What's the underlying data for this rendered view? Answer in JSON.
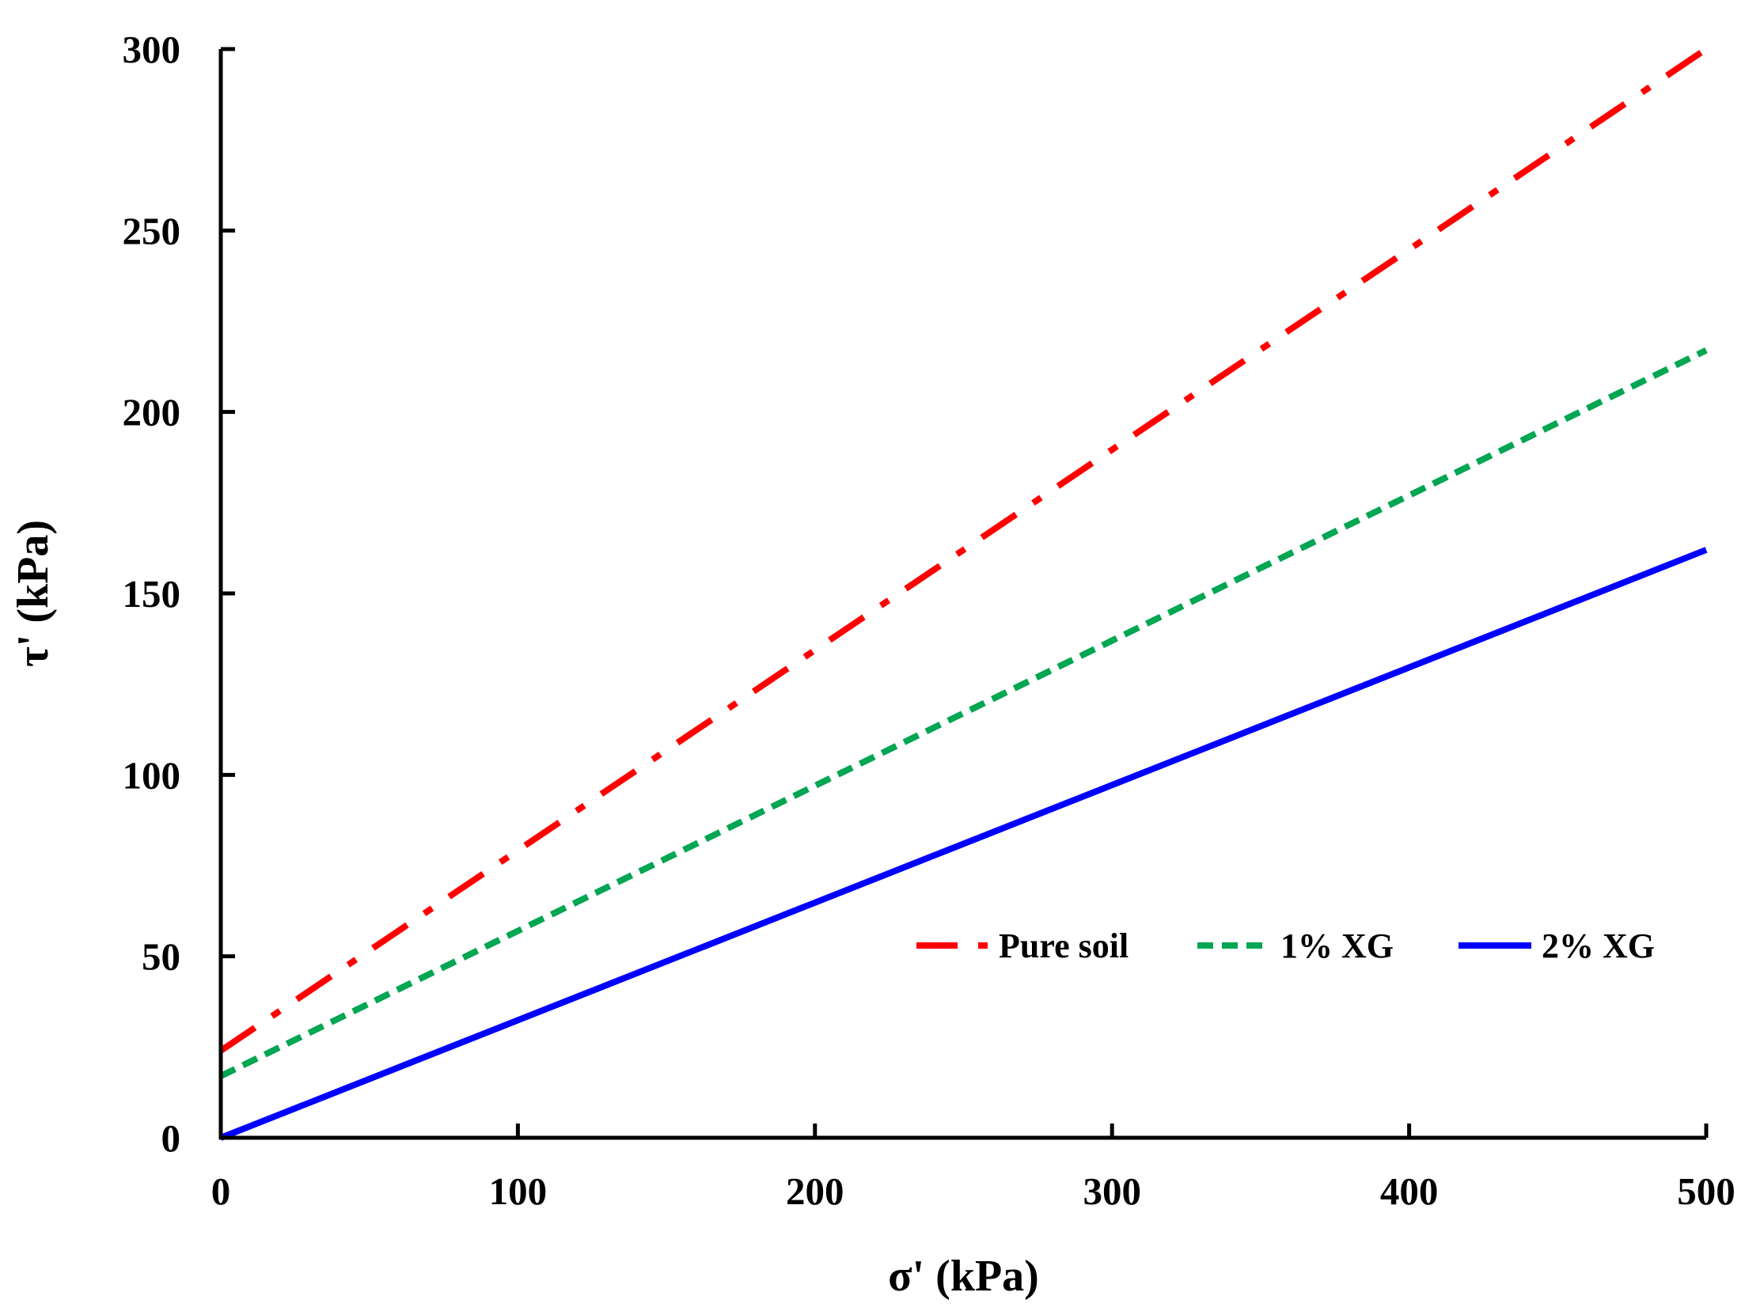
{
  "chart_data": {
    "type": "line",
    "title": "",
    "xlabel": "σ' (kPa)",
    "ylabel": "τ' (kPa)",
    "xlim": [
      0,
      500
    ],
    "ylim": [
      0,
      300
    ],
    "x_ticks": [
      0,
      100,
      200,
      300,
      400,
      500
    ],
    "y_ticks": [
      0,
      50,
      100,
      150,
      200,
      250,
      300
    ],
    "grid": false,
    "legend_position": "inside-lower-right",
    "series": [
      {
        "name": "Pure soil",
        "color": "#ff0000",
        "style": "dash-dot",
        "x": [
          0,
          500
        ],
        "y": [
          24,
          300
        ]
      },
      {
        "name": "1% XG",
        "color": "#00a651",
        "style": "dashed",
        "x": [
          0,
          500
        ],
        "y": [
          17,
          217
        ]
      },
      {
        "name": "2% XG",
        "color": "#0000ff",
        "style": "solid",
        "x": [
          0,
          500
        ],
        "y": [
          0,
          162
        ]
      }
    ]
  }
}
